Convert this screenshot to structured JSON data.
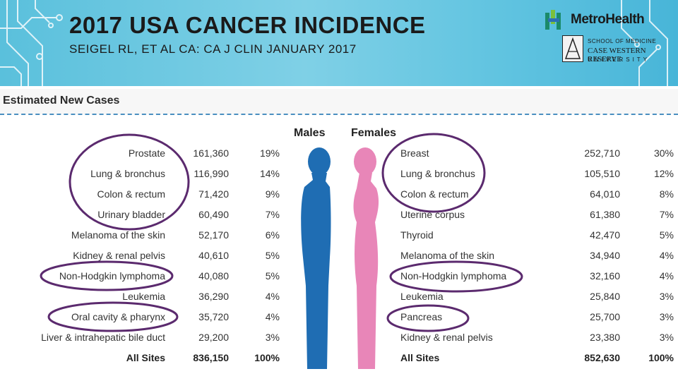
{
  "slide": {
    "title": "2017 USA CANCER INCIDENCE",
    "subtitle": "SEIGEL RL, ET AL CA: CA J CLIN JANUARY 2017"
  },
  "logos": {
    "metro_name": "MetroHealth",
    "cw_line1": "SCHOOL OF MEDICINE",
    "cw_line2": "CASE WESTERN RESERVE",
    "cw_line3": "UNIVERSITY"
  },
  "table": {
    "heading": "Estimated New Cases",
    "males_label": "Males",
    "females_label": "Females",
    "males": [
      {
        "site": "Prostate",
        "cases": "161,360",
        "pct": "19%"
      },
      {
        "site": "Lung & bronchus",
        "cases": "116,990",
        "pct": "14%"
      },
      {
        "site": "Colon & rectum",
        "cases": "71,420",
        "pct": "9%"
      },
      {
        "site": "Urinary bladder",
        "cases": "60,490",
        "pct": "7%"
      },
      {
        "site": "Melanoma of the skin",
        "cases": "52,170",
        "pct": "6%"
      },
      {
        "site": "Kidney & renal pelvis",
        "cases": "40,610",
        "pct": "5%"
      },
      {
        "site": "Non-Hodgkin lymphoma",
        "cases": "40,080",
        "pct": "5%"
      },
      {
        "site": "Leukemia",
        "cases": "36,290",
        "pct": "4%"
      },
      {
        "site": "Oral cavity & pharynx",
        "cases": "35,720",
        "pct": "4%"
      },
      {
        "site": "Liver & intrahepatic bile duct",
        "cases": "29,200",
        "pct": "3%"
      },
      {
        "site": "All Sites",
        "cases": "836,150",
        "pct": "100%"
      }
    ],
    "females": [
      {
        "site": "Breast",
        "cases": "252,710",
        "pct": "30%"
      },
      {
        "site": "Lung & bronchus",
        "cases": "105,510",
        "pct": "12%"
      },
      {
        "site": "Colon & rectum",
        "cases": "64,010",
        "pct": "8%"
      },
      {
        "site": "Uterine corpus",
        "cases": "61,380",
        "pct": "7%"
      },
      {
        "site": "Thyroid",
        "cases": "42,470",
        "pct": "5%"
      },
      {
        "site": "Melanoma of the skin",
        "cases": "34,940",
        "pct": "4%"
      },
      {
        "site": "Non-Hodgkin lymphoma",
        "cases": "32,160",
        "pct": "4%"
      },
      {
        "site": "Leukemia",
        "cases": "25,840",
        "pct": "3%"
      },
      {
        "site": "Pancreas",
        "cases": "25,700",
        "pct": "3%"
      },
      {
        "site": "Kidney & renal pelvis",
        "cases": "23,380",
        "pct": "3%"
      },
      {
        "site": "All Sites",
        "cases": "852,630",
        "pct": "100%"
      }
    ]
  },
  "colors": {
    "banner": "#5ac0dc",
    "male_figure": "#1f6db3",
    "female_figure": "#e886b8",
    "oval": "#5b2a6e",
    "dash": "#4a8fc0"
  }
}
